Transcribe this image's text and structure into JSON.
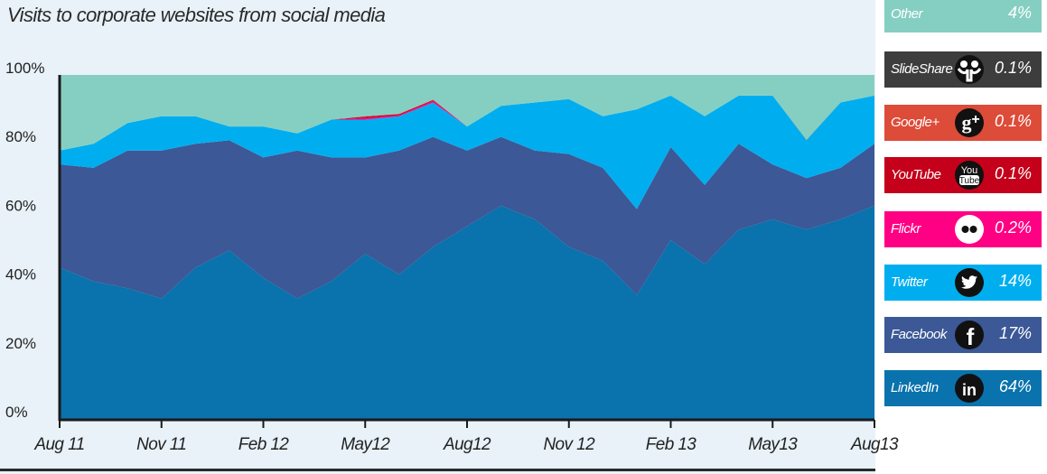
{
  "chart_data": {
    "type": "area",
    "title": "Visits to corporate websites from social media",
    "stacked": true,
    "ylim": [
      0,
      100
    ],
    "y_ticks": [
      "0%",
      "20%",
      "40%",
      "60%",
      "80%",
      "100%"
    ],
    "x_ticks": [
      {
        "label": "Aug 11",
        "index": 0
      },
      {
        "label": "Nov 11",
        "index": 3
      },
      {
        "label": "Feb 12",
        "index": 6
      },
      {
        "label": "May12",
        "index": 9
      },
      {
        "label": "Aug12",
        "index": 12
      },
      {
        "label": "Nov 12",
        "index": 15
      },
      {
        "label": "Feb 13",
        "index": 18
      },
      {
        "label": "May13",
        "index": 21
      },
      {
        "label": "Aug13",
        "index": 24
      }
    ],
    "x_points": 25,
    "series": [
      {
        "name": "LinkedIn",
        "color": "#0a72ac",
        "values": [
          44,
          40,
          38,
          35,
          44,
          49,
          41,
          35,
          40,
          48,
          42,
          50,
          56,
          62,
          58,
          50,
          46,
          36,
          52,
          45,
          55,
          58,
          55,
          58,
          62
        ]
      },
      {
        "name": "Facebook",
        "color": "#3c5896",
        "values": [
          30,
          33,
          40,
          43,
          36,
          32,
          35,
          43,
          36,
          28,
          36,
          32,
          22,
          20,
          20,
          27,
          27,
          25,
          27,
          23,
          25,
          16,
          15,
          15,
          18
        ]
      },
      {
        "name": "Twitter",
        "color": "#00aeef",
        "values": [
          4,
          7,
          8,
          10,
          8,
          4,
          9,
          5,
          11,
          11,
          10,
          10,
          7,
          9,
          14,
          16,
          15,
          29,
          15,
          20,
          14,
          20,
          11,
          19,
          14
        ]
      },
      {
        "name": "Flickr",
        "color": "#ff0084",
        "values": [
          0,
          0,
          0,
          0,
          0,
          0,
          0,
          0,
          0,
          0.5,
          0.3,
          0.5,
          0,
          0,
          0,
          0,
          0,
          0,
          0,
          0,
          0,
          0,
          0,
          0,
          0
        ]
      },
      {
        "name": "YouTube",
        "color": "#c4001a",
        "values": [
          0,
          0,
          0,
          0,
          0,
          0,
          0,
          0,
          0,
          0.4,
          0.3,
          0.2,
          0,
          0,
          0,
          0,
          0,
          0,
          0,
          0,
          0,
          0,
          0,
          0,
          0
        ]
      },
      {
        "name": "Google+",
        "color": "#dd4b39",
        "values": [
          0,
          0,
          0,
          0,
          0,
          0,
          0,
          0,
          0,
          0.1,
          0.1,
          0.1,
          0,
          0,
          0,
          0,
          0,
          0,
          0,
          0,
          0,
          0,
          0,
          0,
          0
        ]
      },
      {
        "name": "SlideShare",
        "color": "#3d3d3d",
        "values": [
          0,
          0,
          0,
          0,
          0,
          0,
          0,
          0,
          0,
          0,
          0,
          0,
          0,
          0,
          0,
          0,
          0,
          0,
          0,
          0,
          0,
          0,
          0.1,
          0,
          0
        ]
      },
      {
        "name": "Other",
        "color": "#85cfc2",
        "values": [
          22,
          20,
          14,
          12,
          12,
          15,
          15,
          17,
          13,
          12,
          11,
          7,
          15,
          9,
          8,
          7,
          12,
          10,
          6,
          12,
          6,
          6,
          19,
          8,
          6
        ]
      }
    ],
    "grid": false
  },
  "legend": [
    {
      "label": "Other",
      "value": "4%",
      "color": "#85cfc2",
      "icon": "none"
    },
    {
      "label": "SlideShare",
      "value": "0.1%",
      "color": "#3d3d3d",
      "icon": "slideshare-icon"
    },
    {
      "label": "Google+",
      "value": "0.1%",
      "color": "#dd4b39",
      "icon": "google-plus-icon",
      "glyph": "g+"
    },
    {
      "label": "YouTube",
      "value": "0.1%",
      "color": "#c4001a",
      "icon": "youtube-icon",
      "glyph_top": "You",
      "glyph_bottom": "Tube"
    },
    {
      "label": "Flickr",
      "value": "0.2%",
      "color": "#ff0084",
      "icon": "flickr-icon"
    },
    {
      "label": "Twitter",
      "value": "14%",
      "color": "#00aeef",
      "icon": "twitter-icon"
    },
    {
      "label": "Facebook",
      "value": "17%",
      "color": "#3c5896",
      "icon": "facebook-icon",
      "glyph": "f"
    },
    {
      "label": "LinkedIn",
      "value": "64%",
      "color": "#0a72ac",
      "icon": "linkedin-icon",
      "glyph": "in"
    }
  ]
}
